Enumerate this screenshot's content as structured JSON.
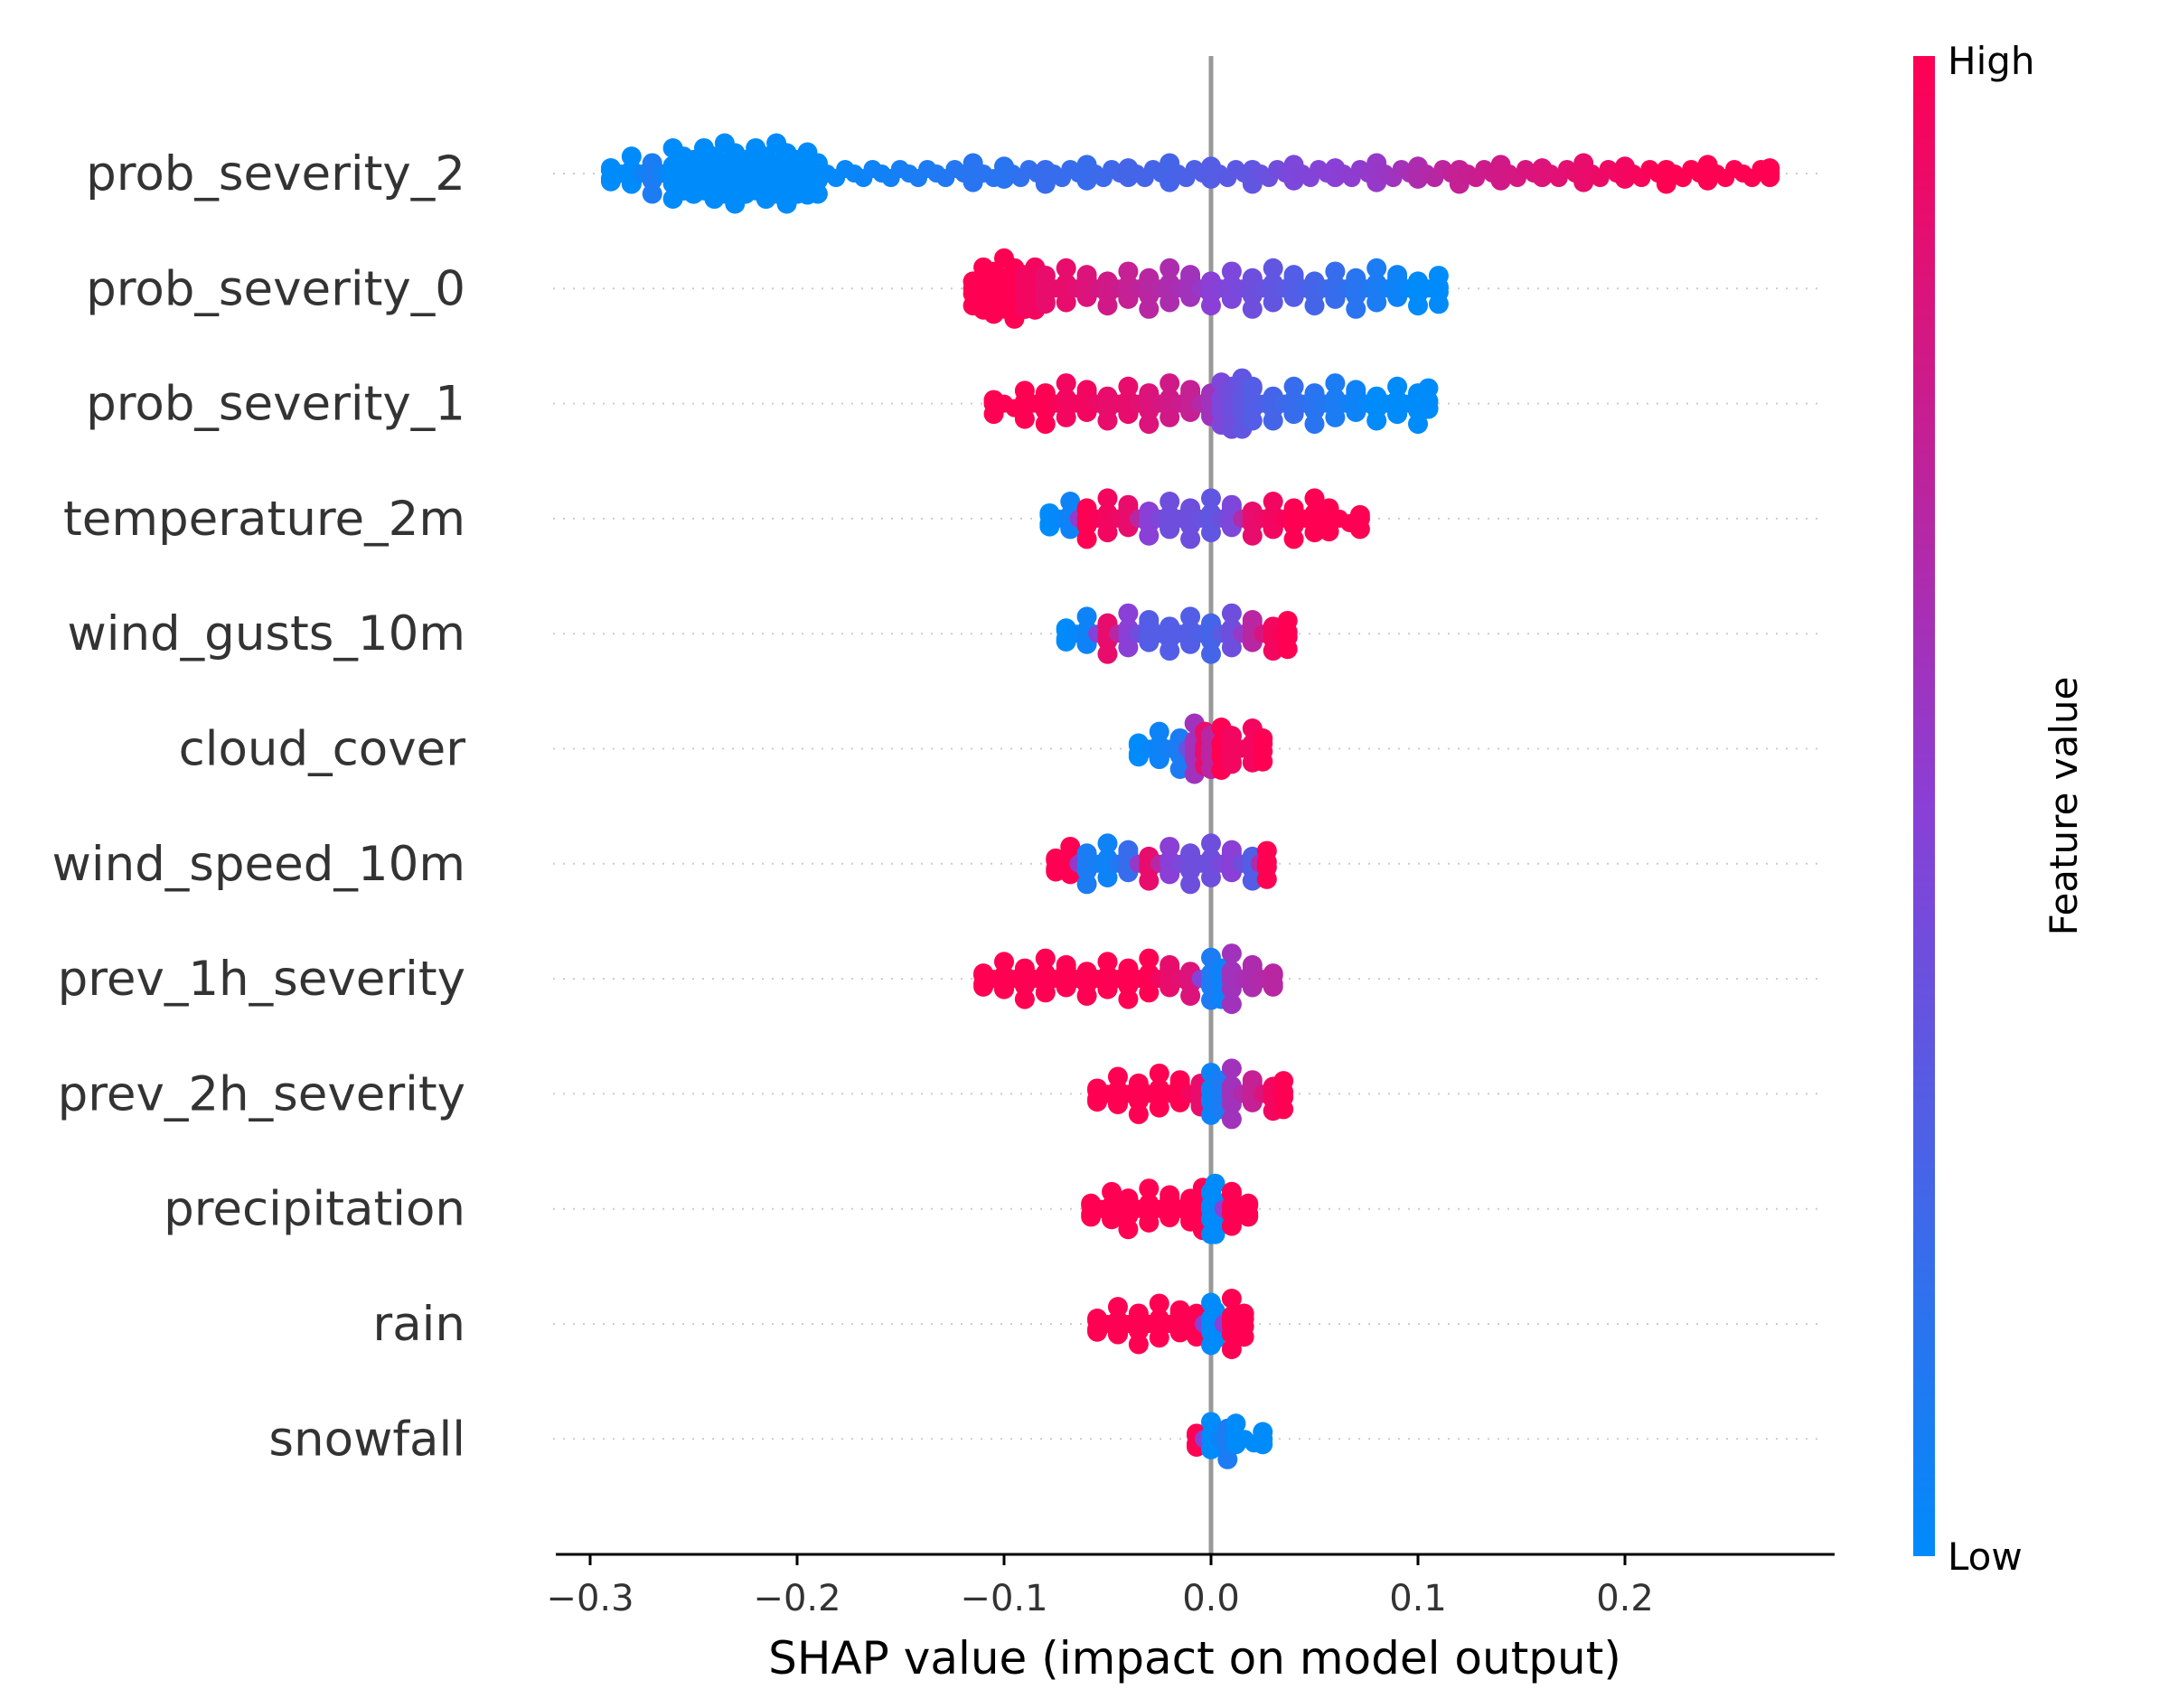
{
  "chart_data": {
    "type": "scatter",
    "subtype": "shap-beeswarm",
    "title": "",
    "xlabel": "SHAP value (impact on model output)",
    "ylabel": "",
    "xlim": [
      -0.32,
      0.3
    ],
    "xticks": [
      -0.3,
      -0.2,
      -0.1,
      0.0,
      0.1,
      0.2
    ],
    "xtick_labels": [
      "−0.3",
      "−0.2",
      "−0.1",
      "0.0",
      "0.1",
      "0.2"
    ],
    "grid": false,
    "colorbar": {
      "label": "Feature value",
      "high_label": "High",
      "low_label": "Low",
      "high_color": "#ff0052",
      "low_color": "#008bfb"
    },
    "colors": {
      "low": "#008bfb",
      "high": "#ff0052",
      "zero_line": "#999999",
      "row_line": "#cccccc"
    },
    "features": [
      {
        "name": "prob_severity_2",
        "points": [
          [
            -0.29,
            0
          ],
          [
            -0.28,
            0
          ],
          [
            -0.27,
            0.1
          ],
          [
            -0.26,
            0
          ],
          [
            -0.255,
            0
          ],
          [
            -0.25,
            0
          ],
          [
            -0.245,
            0
          ],
          [
            -0.24,
            0
          ],
          [
            -0.235,
            0
          ],
          [
            -0.23,
            0
          ],
          [
            -0.225,
            0
          ],
          [
            -0.22,
            0
          ],
          [
            -0.215,
            0
          ],
          [
            -0.21,
            0
          ],
          [
            -0.205,
            0
          ],
          [
            -0.2,
            0
          ],
          [
            -0.195,
            0
          ],
          [
            -0.19,
            0
          ],
          [
            -0.115,
            0.15
          ],
          [
            -0.1,
            0.15
          ],
          [
            -0.08,
            0.2
          ],
          [
            -0.06,
            0.2
          ],
          [
            -0.04,
            0.25
          ],
          [
            -0.02,
            0.25
          ],
          [
            0.0,
            0.3
          ],
          [
            0.02,
            0.35
          ],
          [
            0.04,
            0.45
          ],
          [
            0.06,
            0.5
          ],
          [
            0.08,
            0.55
          ],
          [
            0.1,
            0.65
          ],
          [
            0.12,
            0.75
          ],
          [
            0.14,
            0.8
          ],
          [
            0.16,
            0.85
          ],
          [
            0.18,
            0.9
          ],
          [
            0.2,
            0.95
          ],
          [
            0.22,
            1
          ],
          [
            0.24,
            1
          ],
          [
            0.27,
            1
          ]
        ]
      },
      {
        "name": "prob_severity_0",
        "points": [
          [
            -0.115,
            1
          ],
          [
            -0.11,
            1
          ],
          [
            -0.105,
            1
          ],
          [
            -0.1,
            1
          ],
          [
            -0.095,
            1
          ],
          [
            -0.09,
            0.95
          ],
          [
            -0.085,
            0.95
          ],
          [
            -0.08,
            0.9
          ],
          [
            -0.07,
            0.9
          ],
          [
            -0.06,
            0.85
          ],
          [
            -0.05,
            0.8
          ],
          [
            -0.04,
            0.75
          ],
          [
            -0.03,
            0.7
          ],
          [
            -0.02,
            0.65
          ],
          [
            -0.01,
            0.6
          ],
          [
            0.0,
            0.5
          ],
          [
            0.01,
            0.45
          ],
          [
            0.02,
            0.4
          ],
          [
            0.03,
            0.35
          ],
          [
            0.04,
            0.3
          ],
          [
            0.05,
            0.25
          ],
          [
            0.06,
            0.2
          ],
          [
            0.07,
            0.15
          ],
          [
            0.08,
            0.1
          ],
          [
            0.09,
            0.05
          ],
          [
            0.1,
            0
          ],
          [
            0.11,
            0
          ]
        ]
      },
      {
        "name": "prob_severity_1",
        "points": [
          [
            -0.105,
            1
          ],
          [
            -0.09,
            1
          ],
          [
            -0.08,
            1
          ],
          [
            -0.07,
            0.95
          ],
          [
            -0.06,
            0.95
          ],
          [
            -0.05,
            0.9
          ],
          [
            -0.04,
            0.9
          ],
          [
            -0.03,
            0.85
          ],
          [
            -0.02,
            0.8
          ],
          [
            -0.01,
            0.75
          ],
          [
            0.0,
            0.6
          ],
          [
            0.005,
            0.45
          ],
          [
            0.01,
            0.4
          ],
          [
            0.015,
            0.35
          ],
          [
            0.02,
            0.3
          ],
          [
            0.03,
            0.25
          ],
          [
            0.04,
            0.2
          ],
          [
            0.05,
            0.15
          ],
          [
            0.06,
            0.1
          ],
          [
            0.07,
            0.05
          ],
          [
            0.08,
            0
          ],
          [
            0.09,
            0
          ],
          [
            0.1,
            0
          ],
          [
            0.105,
            0
          ]
        ]
      },
      {
        "name": "temperature_2m",
        "points": [
          [
            -0.078,
            0
          ],
          [
            -0.068,
            0.05
          ],
          [
            -0.06,
            1
          ],
          [
            -0.05,
            0.95
          ],
          [
            -0.04,
            0.9
          ],
          [
            -0.03,
            0.5
          ],
          [
            -0.02,
            0.4
          ],
          [
            -0.01,
            0.4
          ],
          [
            0.0,
            0.35
          ],
          [
            0.01,
            0.45
          ],
          [
            0.02,
            0.9
          ],
          [
            0.03,
            0.95
          ],
          [
            0.04,
            1
          ],
          [
            0.05,
            1
          ],
          [
            0.057,
            1
          ],
          [
            0.072,
            1
          ]
        ]
      },
      {
        "name": "wind_gusts_10m",
        "points": [
          [
            -0.07,
            0
          ],
          [
            -0.06,
            0.05
          ],
          [
            -0.05,
            0.9
          ],
          [
            -0.04,
            0.5
          ],
          [
            -0.03,
            0.3
          ],
          [
            -0.02,
            0.3
          ],
          [
            -0.01,
            0.3
          ],
          [
            0.0,
            0.25
          ],
          [
            0.01,
            0.4
          ],
          [
            0.02,
            0.7
          ],
          [
            0.03,
            0.95
          ],
          [
            0.037,
            1
          ]
        ]
      },
      {
        "name": "cloud_cover",
        "points": [
          [
            -0.035,
            0
          ],
          [
            -0.025,
            0.05
          ],
          [
            -0.015,
            0.1
          ],
          [
            -0.008,
            0.6
          ],
          [
            -0.003,
            0.9
          ],
          [
            0.0,
            0.7
          ],
          [
            0.005,
            1
          ],
          [
            0.01,
            0.95
          ],
          [
            0.02,
            0.95
          ],
          [
            0.025,
            1
          ]
        ]
      },
      {
        "name": "wind_speed_10m",
        "points": [
          [
            -0.075,
            1
          ],
          [
            -0.068,
            1
          ],
          [
            -0.06,
            0.1
          ],
          [
            -0.05,
            0.05
          ],
          [
            -0.04,
            0.2
          ],
          [
            -0.03,
            0.9
          ],
          [
            -0.02,
            0.5
          ],
          [
            -0.01,
            0.4
          ],
          [
            0.0,
            0.4
          ],
          [
            0.01,
            0.5
          ],
          [
            0.02,
            0.3
          ],
          [
            0.027,
            1
          ]
        ]
      },
      {
        "name": "prev_1h_severity",
        "points": [
          [
            -0.11,
            1
          ],
          [
            -0.1,
            1
          ],
          [
            -0.09,
            1
          ],
          [
            -0.08,
            1
          ],
          [
            -0.07,
            1
          ],
          [
            -0.06,
            1
          ],
          [
            -0.05,
            1
          ],
          [
            -0.04,
            1
          ],
          [
            -0.03,
            1
          ],
          [
            -0.02,
            0.9
          ],
          [
            -0.01,
            0.85
          ],
          [
            0.0,
            0.1
          ],
          [
            0.005,
            0.05
          ],
          [
            0.01,
            0.6
          ],
          [
            0.02,
            0.65
          ],
          [
            0.03,
            0.7
          ]
        ]
      },
      {
        "name": "prev_2h_severity",
        "points": [
          [
            -0.055,
            1
          ],
          [
            -0.045,
            1
          ],
          [
            -0.035,
            1
          ],
          [
            -0.025,
            1
          ],
          [
            -0.015,
            1
          ],
          [
            -0.005,
            0.9
          ],
          [
            0.0,
            0.05
          ],
          [
            0.005,
            0.1
          ],
          [
            0.01,
            0.6
          ],
          [
            0.02,
            0.75
          ],
          [
            0.03,
            0.95
          ],
          [
            0.035,
            1
          ]
        ]
      },
      {
        "name": "precipitation",
        "points": [
          [
            -0.058,
            1
          ],
          [
            -0.048,
            1
          ],
          [
            -0.04,
            1
          ],
          [
            -0.03,
            1
          ],
          [
            -0.02,
            1
          ],
          [
            -0.01,
            1
          ],
          [
            -0.004,
            1
          ],
          [
            0.0,
            0
          ],
          [
            0.002,
            0
          ],
          [
            0.01,
            1
          ],
          [
            0.018,
            1
          ]
        ]
      },
      {
        "name": "rain",
        "points": [
          [
            -0.055,
            1
          ],
          [
            -0.045,
            1
          ],
          [
            -0.035,
            1
          ],
          [
            -0.025,
            1
          ],
          [
            -0.015,
            1
          ],
          [
            -0.007,
            1
          ],
          [
            0.0,
            0
          ],
          [
            0.002,
            0
          ],
          [
            0.01,
            1
          ],
          [
            0.016,
            1
          ]
        ]
      },
      {
        "name": "snowfall",
        "points": [
          [
            -0.007,
            1
          ],
          [
            0.0,
            0
          ],
          [
            0.008,
            0.1
          ],
          [
            0.012,
            0
          ],
          [
            0.025,
            0
          ]
        ]
      }
    ]
  }
}
